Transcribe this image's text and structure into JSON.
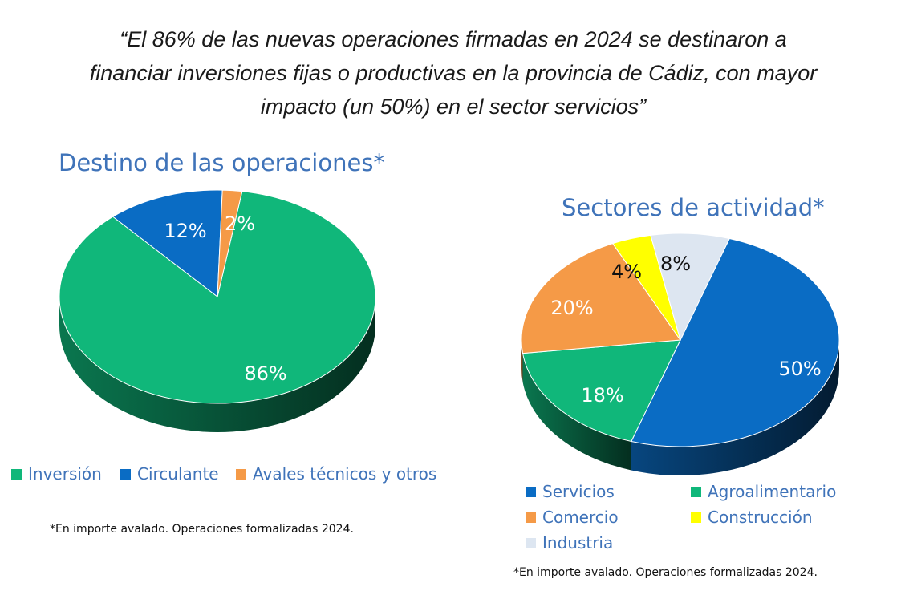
{
  "quote": {
    "line1": "“El 86% de las nuevas operaciones firmadas en 2024 se destinaron a",
    "line2": "financiar inversiones fijas o productivas en la provincia de Cádiz, con mayor",
    "line3": "impacto (un 50%) en el sector servicios”"
  },
  "chart_data": [
    {
      "type": "pie",
      "title": "Destino de las operaciones*",
      "categories": [
        "Inversión",
        "Circulante",
        "Avales técnicos y otros"
      ],
      "values": [
        86,
        12,
        2
      ],
      "labels": [
        "86%",
        "12%",
        "2%"
      ],
      "colors": [
        "#10b77a",
        "#0a6cc4",
        "#f59a47"
      ],
      "legend_position": "bottom",
      "footnote": "*En importe avalado. Operaciones formalizadas 2024."
    },
    {
      "type": "pie",
      "title": "Sectores de actividad*",
      "categories": [
        "Servicios",
        "Agroalimentario",
        "Comercio",
        "Construcción",
        "Industria"
      ],
      "values": [
        50,
        18,
        20,
        4,
        8
      ],
      "labels": [
        "50%",
        "18%",
        "20%",
        "4%",
        "8%"
      ],
      "colors": [
        "#0a6cc4",
        "#10b77a",
        "#f59a47",
        "#ffff00",
        "#dde6f1"
      ],
      "legend_position": "bottom",
      "footnote": "*En importe avalado. Operaciones formalizadas 2024."
    }
  ]
}
